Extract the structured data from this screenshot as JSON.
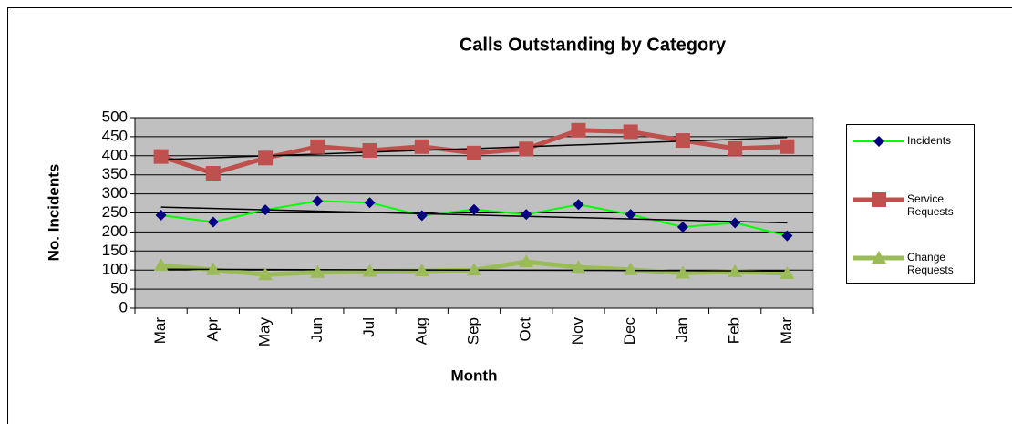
{
  "chart_data": {
    "type": "line",
    "title": "Calls Outstanding by Category",
    "x_label": "Month",
    "y_label": "No. Incidents",
    "categories": [
      "Mar",
      "Apr",
      "May",
      "Jun",
      "Jul",
      "Aug",
      "Sep",
      "Oct",
      "Nov",
      "Dec",
      "Jan",
      "Feb",
      "Mar"
    ],
    "series": [
      {
        "name": "Incidents",
        "color": "#00ff00",
        "marker": "diamond",
        "marker_color": "#000080",
        "values": [
          244,
          226,
          258,
          281,
          277,
          243,
          259,
          246,
          272,
          246,
          213,
          224,
          190
        ]
      },
      {
        "name": "Service Requests",
        "color": "#c0504d",
        "marker": "square",
        "marker_color": "#c0504d",
        "values": [
          398,
          354,
          394,
          424,
          414,
          424,
          407,
          418,
          467,
          463,
          440,
          419,
          424
        ]
      },
      {
        "name": "Change Requests",
        "color": "#9bbb59",
        "marker": "triangle",
        "marker_color": "#9bbb59",
        "values": [
          112,
          101,
          88,
          94,
          97,
          98,
          100,
          122,
          107,
          101,
          92,
          96,
          91
        ]
      }
    ],
    "ylim": [
      0,
      500
    ],
    "yticks": [
      0,
      50,
      100,
      150,
      200,
      250,
      300,
      350,
      400,
      450,
      500
    ],
    "grid": true,
    "trendline": true,
    "legend": "right",
    "plot_background": "#c0c0c0"
  }
}
